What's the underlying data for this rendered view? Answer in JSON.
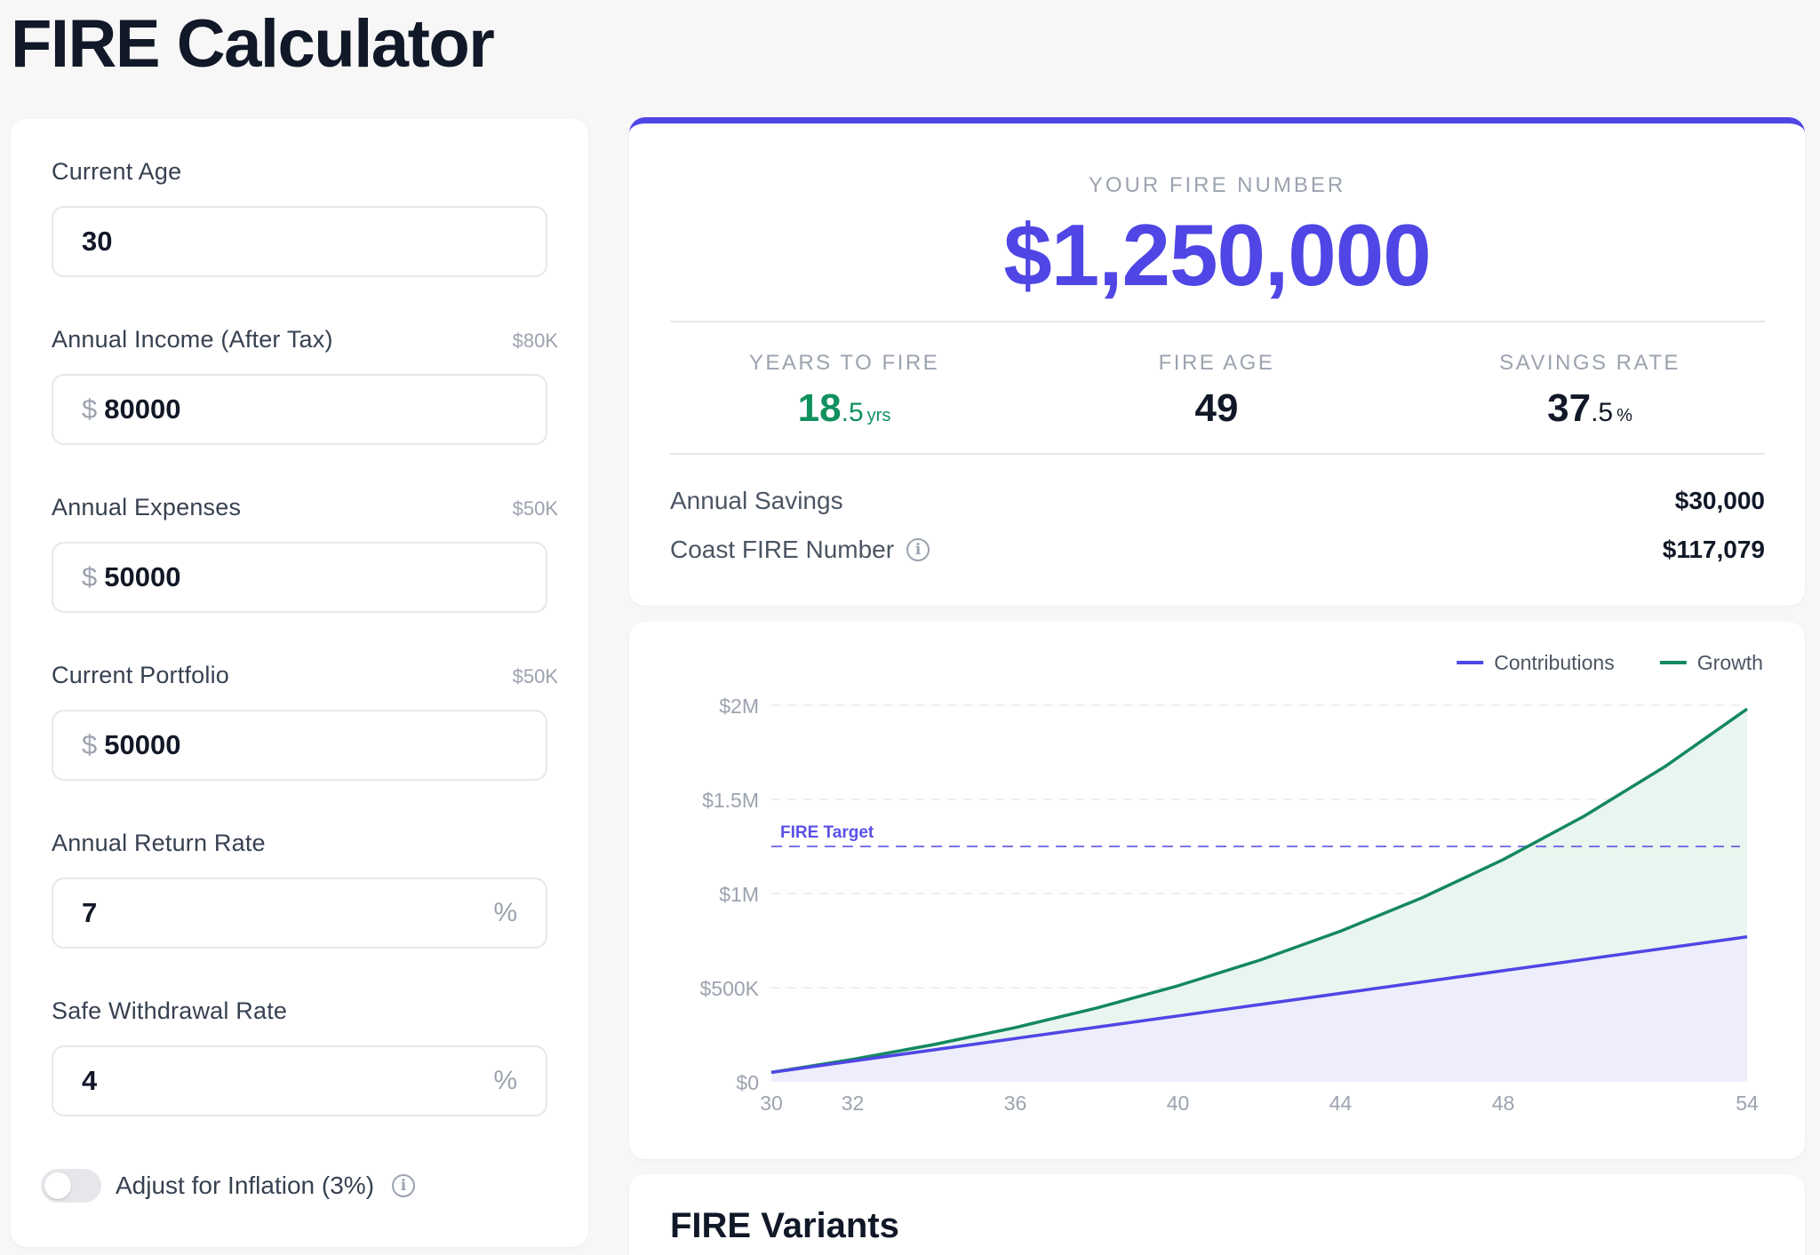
{
  "page": {
    "title": "FIRE Calculator"
  },
  "form": {
    "current_age": {
      "label": "Current Age",
      "hint": "",
      "value": "30"
    },
    "annual_income": {
      "label": "Annual Income (After Tax)",
      "hint": "$80K",
      "prefix": "$",
      "value": "80000"
    },
    "annual_expenses": {
      "label": "Annual Expenses",
      "hint": "$50K",
      "prefix": "$",
      "value": "50000"
    },
    "current_portfolio": {
      "label": "Current Portfolio",
      "hint": "$50K",
      "prefix": "$",
      "value": "50000"
    },
    "return_rate": {
      "label": "Annual Return Rate",
      "value": "7",
      "suffix": "%"
    },
    "withdrawal_rate": {
      "label": "Safe Withdrawal Rate",
      "value": "4",
      "suffix": "%"
    },
    "inflation": {
      "label": "Adjust for Inflation (3%)",
      "enabled": false
    }
  },
  "summary": {
    "fire_label": "YOUR FIRE NUMBER",
    "fire_number": "$1,250,000",
    "years_to_fire": {
      "label": "YEARS TO FIRE",
      "whole": "18",
      "decimal": ".5",
      "unit": "yrs"
    },
    "fire_age": {
      "label": "FIRE AGE",
      "value": "49"
    },
    "savings_rate": {
      "label": "SAVINGS RATE",
      "whole": "37",
      "decimal": ".5",
      "unit": "%"
    },
    "annual_savings": {
      "label": "Annual Savings",
      "value": "$30,000"
    },
    "coast_fire": {
      "label": "Coast FIRE Number",
      "value": "$117,079"
    }
  },
  "chart_data": {
    "type": "area",
    "title": "",
    "xlabel": "",
    "ylabel": "",
    "x_ticks": [
      30,
      32,
      36,
      40,
      44,
      48,
      54
    ],
    "y_ticks": [
      "$0",
      "$500K",
      "$1M",
      "$1.5M",
      "$2M"
    ],
    "xlim": [
      30,
      54
    ],
    "ylim": [
      0,
      2000000
    ],
    "legend_position": "top-right",
    "grid": true,
    "target": {
      "label": "FIRE Target",
      "value": 1250000,
      "color": "#5b52e6"
    },
    "series": [
      {
        "name": "Contributions",
        "color": "#4f46e5",
        "fill": "#eeedfc",
        "x": [
          30,
          32,
          34,
          36,
          38,
          40,
          42,
          44,
          46,
          48,
          50,
          52,
          54
        ],
        "values": [
          50000,
          110000,
          170000,
          230000,
          290000,
          350000,
          410000,
          470000,
          530000,
          590000,
          650000,
          710000,
          770000
        ]
      },
      {
        "name": "Growth",
        "color": "#14885f",
        "fill": "#e9f5ef",
        "x": [
          30,
          32,
          34,
          36,
          38,
          40,
          42,
          44,
          46,
          48,
          50,
          52,
          54
        ],
        "values": [
          50000,
          119000,
          198000,
          288000,
          392000,
          510000,
          645000,
          800000,
          977000,
          1180000,
          1412000,
          1677000,
          1980000
        ]
      }
    ]
  },
  "variants": {
    "title": "FIRE Variants"
  }
}
